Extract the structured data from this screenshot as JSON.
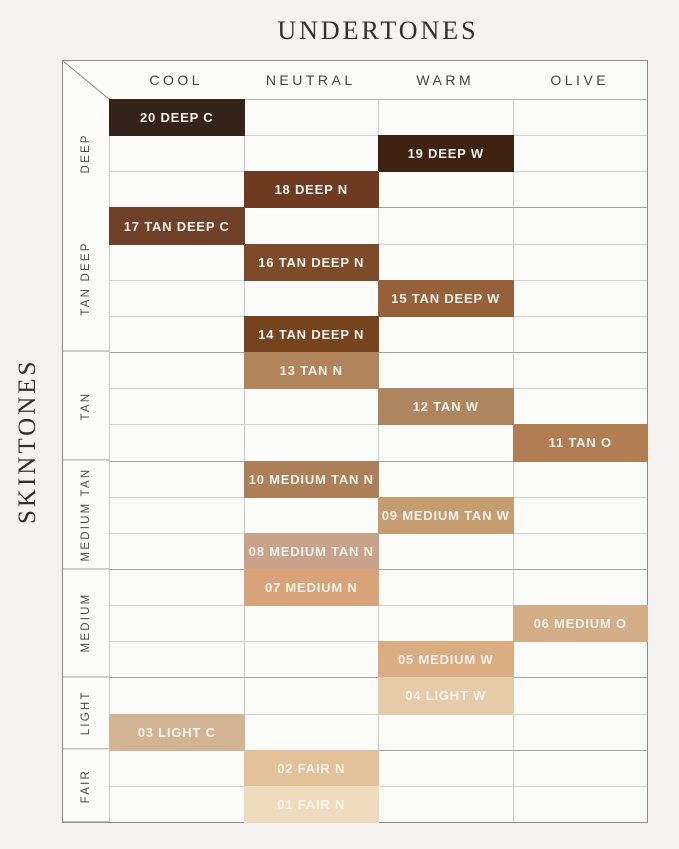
{
  "page": {
    "title": "UNDERTONES",
    "side_title": "SKINTONES",
    "background": "#f4f3f1"
  },
  "chart_data": {
    "type": "table",
    "title": "UNDERTONES",
    "row_axis_label": "SKINTONES",
    "columns": [
      "COOL",
      "NEUTRAL",
      "WARM",
      "OLIVE"
    ],
    "row_groups": [
      {
        "label": "DEEP",
        "row_count": 3
      },
      {
        "label": "TAN DEEP",
        "row_count": 4
      },
      {
        "label": "TAN",
        "row_count": 3
      },
      {
        "label": "MEDIUM TAN",
        "row_count": 3
      },
      {
        "label": "MEDIUM",
        "row_count": 3
      },
      {
        "label": "LIGHT",
        "row_count": 2
      },
      {
        "label": "FAIR",
        "row_count": 2
      }
    ],
    "shades": [
      {
        "label": "20 DEEP C",
        "group": "DEEP",
        "undertone": "COOL",
        "color": "#35231a"
      },
      {
        "label": "19 DEEP W",
        "group": "DEEP",
        "undertone": "WARM",
        "color": "#3d2212"
      },
      {
        "label": "18 DEEP N",
        "group": "DEEP",
        "undertone": "NEUTRAL",
        "color": "#6e3b20"
      },
      {
        "label": "17 TAN DEEP C",
        "group": "TAN DEEP",
        "undertone": "COOL",
        "color": "#6f4129"
      },
      {
        "label": "16 TAN DEEP N",
        "group": "TAN DEEP",
        "undertone": "NEUTRAL",
        "color": "#7d4b2a"
      },
      {
        "label": "15 TAN DEEP W",
        "group": "TAN DEEP",
        "undertone": "WARM",
        "color": "#96603a"
      },
      {
        "label": "14 TAN DEEP N",
        "group": "TAN DEEP",
        "undertone": "NEUTRAL",
        "color": "#76431f"
      },
      {
        "label": "13 TAN N",
        "group": "TAN",
        "undertone": "NEUTRAL",
        "color": "#b2845c"
      },
      {
        "label": "12 TAN W",
        "group": "TAN",
        "undertone": "WARM",
        "color": "#ad8660"
      },
      {
        "label": "11 TAN O",
        "group": "TAN",
        "undertone": "OLIVE",
        "color": "#b07e52"
      },
      {
        "label": "10 MEDIUM TAN N",
        "group": "MEDIUM TAN",
        "undertone": "NEUTRAL",
        "color": "#ad7f58"
      },
      {
        "label": "09 MEDIUM TAN W",
        "group": "MEDIUM TAN",
        "undertone": "WARM",
        "color": "#c69d70"
      },
      {
        "label": "08 MEDIUM TAN N",
        "group": "MEDIUM TAN",
        "undertone": "NEUTRAL",
        "color": "#c9a389"
      },
      {
        "label": "07 MEDIUM N",
        "group": "MEDIUM",
        "undertone": "NEUTRAL",
        "color": "#d9a379"
      },
      {
        "label": "06 MEDIUM O",
        "group": "MEDIUM",
        "undertone": "OLIVE",
        "color": "#d2ad85"
      },
      {
        "label": "05 MEDIUM W",
        "group": "MEDIUM",
        "undertone": "WARM",
        "color": "#dbac82"
      },
      {
        "label": "04 LIGHT W",
        "group": "LIGHT",
        "undertone": "WARM",
        "color": "#e6cba8"
      },
      {
        "label": "03 LIGHT C",
        "group": "LIGHT",
        "undertone": "COOL",
        "color": "#d2b494"
      },
      {
        "label": "02 FAIR N",
        "group": "FAIR",
        "undertone": "NEUTRAL",
        "color": "#e4c299"
      },
      {
        "label": "01 FAIR N",
        "group": "FAIR",
        "undertone": "NEUTRAL",
        "color": "#eedcbd"
      }
    ],
    "swatch_text_color": "#f7f3ec",
    "layout": {
      "legend": "none",
      "grid": "on",
      "column_header_position": "top",
      "row_label_position": "left"
    }
  }
}
